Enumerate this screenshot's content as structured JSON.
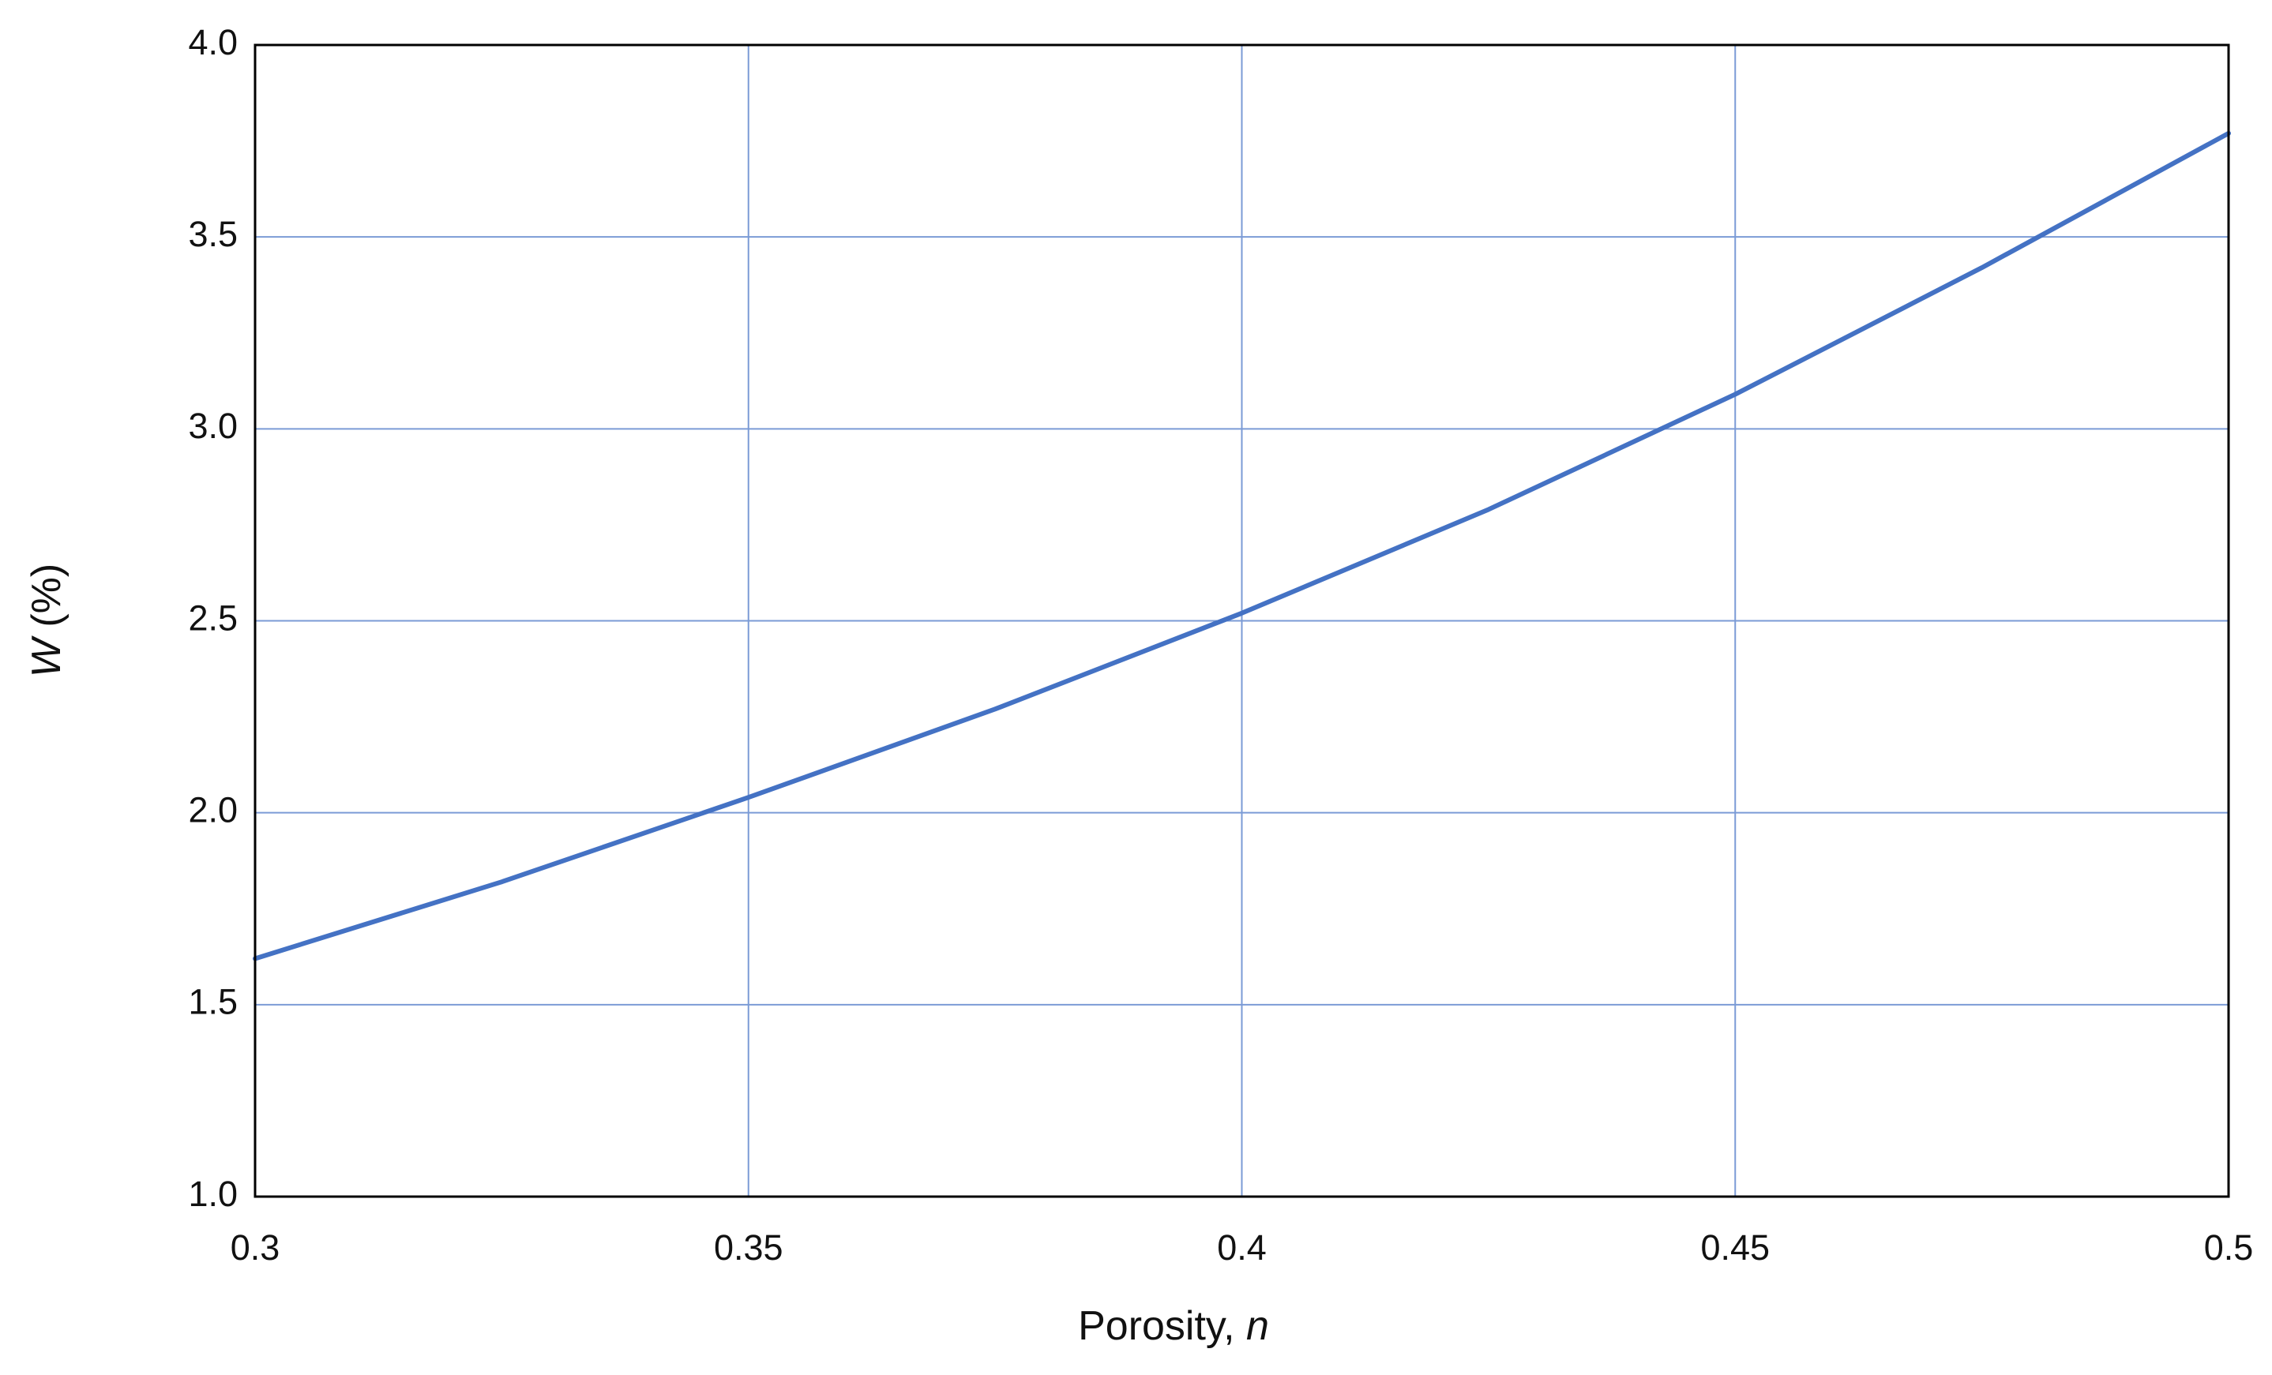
{
  "chart_data": {
    "type": "line",
    "xlabel": {
      "text": "Porosity,",
      "symbol": "n"
    },
    "ylabel": {
      "symbol": "W",
      "unit": "(%)"
    },
    "x": [
      0.3,
      0.325,
      0.35,
      0.375,
      0.4,
      0.425,
      0.45,
      0.475,
      0.5
    ],
    "values": [
      1.62,
      1.82,
      2.04,
      2.27,
      2.52,
      2.79,
      3.09,
      3.42,
      3.77
    ],
    "color": "#4472c4",
    "grid_color": "#7b9bd6",
    "xlim": [
      0.3,
      0.5
    ],
    "ylim": [
      1,
      4
    ],
    "xticks": [
      0.3,
      0.35,
      0.4,
      0.45,
      0.5
    ],
    "yticks": [
      {
        "value": 1,
        "label": "1.0"
      },
      1.5,
      {
        "value": 2,
        "label": "2.0"
      },
      2.5,
      {
        "value": 3,
        "label": "3.0"
      },
      3.5,
      {
        "value": 4,
        "label": "4.0"
      }
    ],
    "grid": true
  }
}
